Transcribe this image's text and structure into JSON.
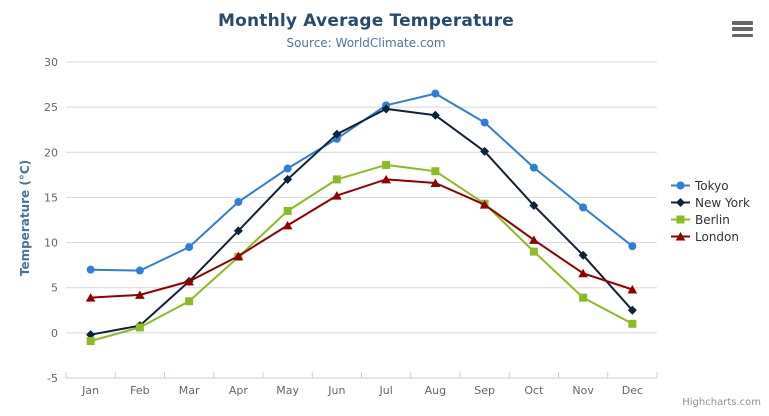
{
  "chart_data": {
    "type": "line",
    "title": "Monthly Average Temperature",
    "subtitle": "Source: WorldClimate.com",
    "ylabel": "Temperature (°C)",
    "xlabel": "",
    "categories": [
      "Jan",
      "Feb",
      "Mar",
      "Apr",
      "May",
      "Jun",
      "Jul",
      "Aug",
      "Sep",
      "Oct",
      "Nov",
      "Dec"
    ],
    "ylim": [
      -5,
      30
    ],
    "y_ticks": [
      -5,
      0,
      5,
      10,
      15,
      20,
      25,
      30
    ],
    "grid": true,
    "legend_position": "right",
    "series": [
      {
        "name": "Tokyo",
        "color": "#2f7ed8",
        "marker": "circle",
        "values": [
          7.0,
          6.9,
          9.5,
          14.5,
          18.2,
          21.5,
          25.2,
          26.5,
          23.3,
          18.3,
          13.9,
          9.6
        ]
      },
      {
        "name": "New York",
        "color": "#0d233a",
        "marker": "diamond",
        "values": [
          -0.2,
          0.8,
          5.7,
          11.3,
          17.0,
          22.0,
          24.8,
          24.1,
          20.1,
          14.1,
          8.6,
          2.5
        ]
      },
      {
        "name": "Berlin",
        "color": "#8bbc21",
        "marker": "square",
        "values": [
          -0.9,
          0.6,
          3.5,
          8.4,
          13.5,
          17.0,
          18.6,
          17.9,
          14.3,
          9.0,
          3.9,
          1.0
        ]
      },
      {
        "name": "London",
        "color": "#910000",
        "marker": "triangle",
        "values": [
          3.9,
          4.2,
          5.7,
          8.5,
          11.9,
          15.2,
          17.0,
          16.6,
          14.2,
          10.3,
          6.6,
          4.8
        ]
      }
    ],
    "colors": {
      "grid": "#d8d8d8",
      "axis_line": "#c0d0e0",
      "axis_label": "#666666",
      "axis_title": "#4572a7",
      "title": "#274b6d",
      "subtitle": "#4d759e",
      "legend_text": "#333333",
      "menu_icon": "#666666",
      "credits": "#909090"
    }
  },
  "credits": {
    "text": "Highcharts.com"
  }
}
